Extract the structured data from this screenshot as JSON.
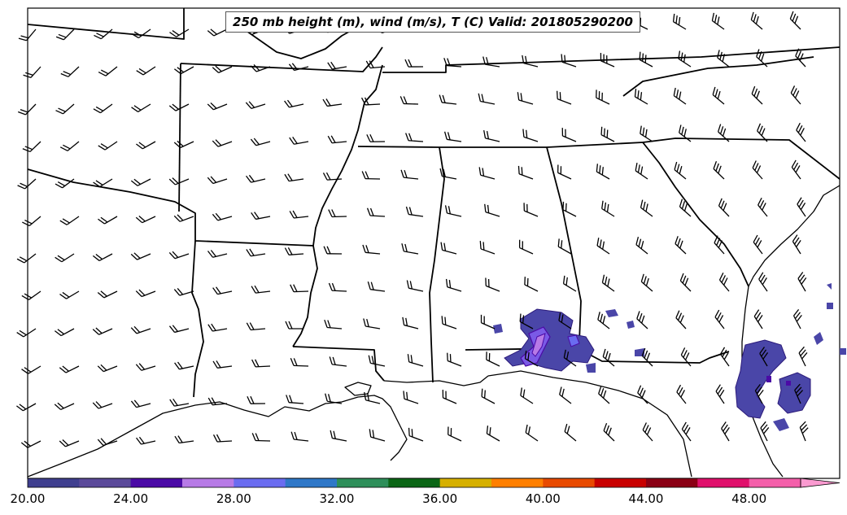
{
  "title": "250 mb height (m), wind (m/s), T (C) Valid: 201805290200",
  "colorbar": {
    "tick_labels": [
      "20.00",
      "24.00",
      "28.00",
      "32.00",
      "36.00",
      "40.00",
      "44.00",
      "48.00"
    ],
    "colors": [
      "#3f3f8f",
      "#5b4a9a",
      "#4b0aa6",
      "#b77ae6",
      "#6a6cf0",
      "#2f78c8",
      "#2e8f5a",
      "#0b6616",
      "#d6b000",
      "#ff7f00",
      "#e84a00",
      "#c80000",
      "#8a0014",
      "#e0106c",
      "#f45faa",
      "#fa9ad0"
    ],
    "extend": "max"
  }
}
